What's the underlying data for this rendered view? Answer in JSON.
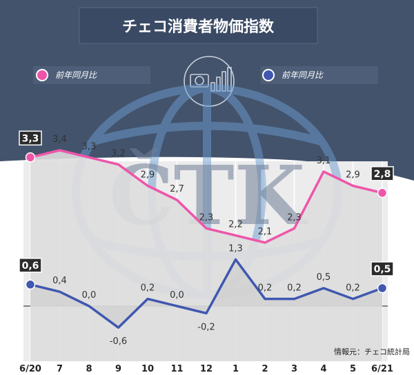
{
  "title": "チェコ消費者物価指数",
  "legend": [
    {
      "label": "前年同月比",
      "color": "#ee55aa"
    },
    {
      "label": "前年同月比",
      "color": "#3f57b0"
    }
  ],
  "source": "情報元：チェコ統計局",
  "watermark": "ČTK",
  "watermark_icon": "money-chart-icon",
  "chart_data": {
    "type": "line",
    "categories": [
      "6/20",
      "7",
      "8",
      "9",
      "10",
      "11",
      "12",
      "1",
      "2",
      "3",
      "4",
      "5",
      "6/21"
    ],
    "series": [
      {
        "color": "#ee55aa",
        "values": [
          3.3,
          3.4,
          3.3,
          3.2,
          2.9,
          2.7,
          2.3,
          2.2,
          2.1,
          2.3,
          3.1,
          2.9,
          2.8
        ],
        "labels": [
          "3,3",
          "3,4",
          "3,3",
          "3,2",
          "2,9",
          "2,7",
          "2,3",
          "2,2",
          "2,1",
          "2,3",
          "3,1",
          "2,9",
          "2,8"
        ]
      },
      {
        "color": "#3f57b0",
        "values": [
          0.6,
          0.4,
          0.0,
          -0.6,
          0.2,
          0.0,
          -0.2,
          1.3,
          0.2,
          0.2,
          0.5,
          0.2,
          0.5
        ],
        "labels": [
          "0,6",
          "0,4",
          "0,0",
          "-0,6",
          "0,2",
          "0,0",
          "-0,2",
          "1,3",
          "0,2",
          "0,2",
          "0,5",
          "0,2",
          "0,5"
        ]
      }
    ],
    "highlighted_points": [
      0,
      12
    ]
  }
}
